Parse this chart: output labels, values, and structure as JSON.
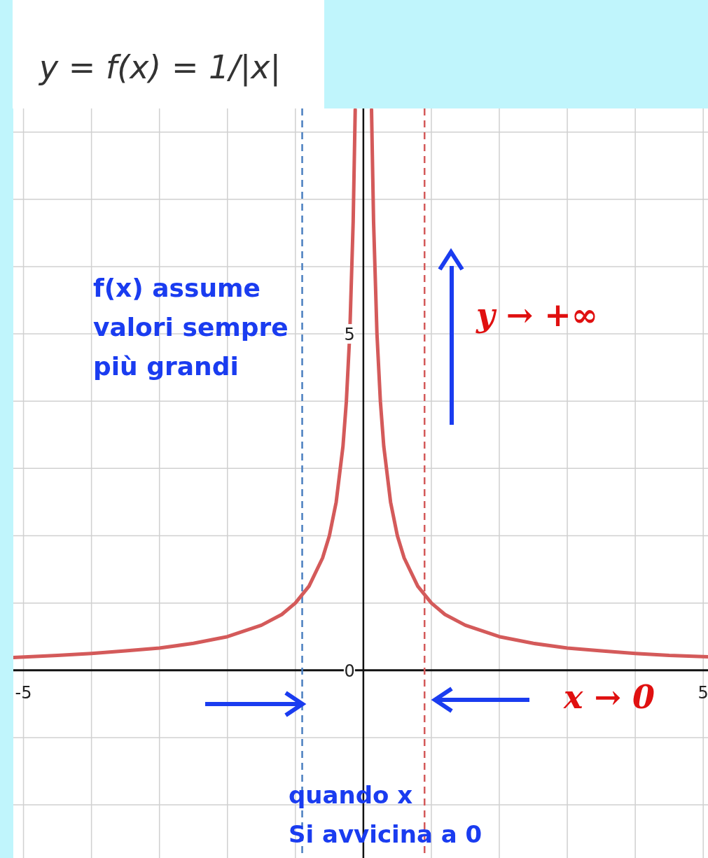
{
  "chart_data": {
    "type": "line",
    "title": "y = f(x) = 1/|x|",
    "xlim": [
      -5.15,
      5.07
    ],
    "ylim": [
      -2.79,
      8.35
    ],
    "xticks": [
      -5,
      {
        "value": -4,
        "label": null
      },
      {
        "value": -3,
        "label": null
      },
      {
        "value": -2,
        "label": null
      },
      {
        "value": -1,
        "label": null
      },
      {
        "value": 0,
        "label": null
      },
      {
        "value": 1,
        "label": null
      },
      {
        "value": 2,
        "label": null
      },
      {
        "value": 3,
        "label": null
      },
      {
        "value": 4,
        "label": null
      },
      5
    ],
    "yticks": [
      {
        "value": -2,
        "label": null
      },
      {
        "value": -1,
        "label": null
      },
      {
        "value": 0,
        "label": "0"
      },
      {
        "value": 1,
        "label": null
      },
      {
        "value": 2,
        "label": null
      },
      {
        "value": 3,
        "label": null
      },
      {
        "value": 4,
        "label": null
      },
      5,
      {
        "value": 6,
        "label": null
      },
      {
        "value": 7,
        "label": null
      },
      {
        "value": 8,
        "label": null
      }
    ],
    "grid": true,
    "series": [
      {
        "color": "#d45a5a",
        "x": [
          -5.15,
          -4.5,
          -4,
          -3.5,
          -3,
          -2.5,
          -2,
          -1.5,
          -1.2,
          -1,
          -0.8,
          -0.6,
          -0.5,
          -0.4,
          -0.3,
          -0.25,
          -0.2,
          -0.15,
          -0.12,
          0,
          0.12,
          0.15,
          0.2,
          0.25,
          0.3,
          0.4,
          0.5,
          0.6,
          0.8,
          1,
          1.2,
          1.5,
          2,
          2.5,
          3,
          3.5,
          4,
          4.5,
          5.07
        ],
        "values": [
          0.19,
          0.22,
          0.25,
          0.29,
          0.33,
          0.4,
          0.5,
          0.67,
          0.83,
          1,
          1.25,
          1.67,
          2,
          2.5,
          3.33,
          4,
          5,
          6.67,
          8.33,
          null,
          8.33,
          6.67,
          5,
          4,
          3.33,
          2.5,
          2,
          1.67,
          1.25,
          1,
          0.83,
          0.67,
          0.5,
          0.4,
          0.33,
          0.29,
          0.25,
          0.22,
          0.2
        ]
      }
    ],
    "ref_lines": [
      {
        "axis": "x",
        "value": -0.9,
        "color": "#4a7fc0",
        "line_style": "dashed"
      },
      {
        "axis": "x",
        "value": 0.9,
        "color": "#d45a5a",
        "line_style": "dashed"
      }
    ],
    "annotations": [
      "f(x) assume\nvalori sempre\npiù grandi",
      "y → +∞",
      "x → 0",
      "quando x\nSi avvicina a 0"
    ]
  }
}
